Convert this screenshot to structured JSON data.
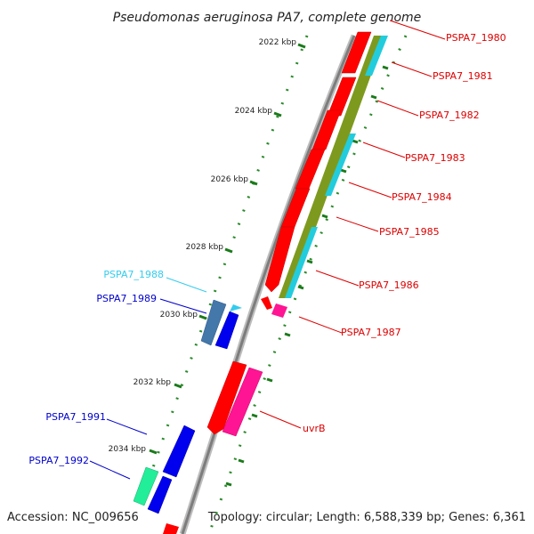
{
  "title": "Pseudomonas aeruginosa PA7, complete genome",
  "footer": {
    "accession": "Accession: NC_009656",
    "topology": "Topology: circular; Length: 6,588,339 bp; Genes: 6,361"
  },
  "ticks": [
    {
      "label": "2022 kbp"
    },
    {
      "label": "2024 kbp"
    },
    {
      "label": "2026 kbp"
    },
    {
      "label": "2028 kbp"
    },
    {
      "label": "2030 kbp"
    },
    {
      "label": "2032 kbp"
    },
    {
      "label": "2034 kbp"
    }
  ],
  "genes": [
    {
      "name": "PSPA7_1980",
      "color": "#ff0000"
    },
    {
      "name": "PSPA7_1981",
      "color": "#ff0000"
    },
    {
      "name": "PSPA7_1982",
      "color": "#ff0000"
    },
    {
      "name": "PSPA7_1983",
      "color": "#ff0000"
    },
    {
      "name": "PSPA7_1984",
      "color": "#ff0000"
    },
    {
      "name": "PSPA7_1985",
      "color": "#ff0000"
    },
    {
      "name": "PSPA7_1986",
      "color": "#ff0000"
    },
    {
      "name": "PSPA7_1987",
      "color": "#ff0000"
    },
    {
      "name": "PSPA7_1988",
      "color": "#33ccee"
    },
    {
      "name": "PSPA7_1989",
      "color": "#0000cc"
    },
    {
      "name": "uvrB",
      "color": "#ff0000"
    },
    {
      "name": "PSPA7_1991",
      "color": "#0000cc"
    },
    {
      "name": "PSPA7_1992",
      "color": "#0000cc"
    }
  ],
  "colors": {
    "backbone": "#8a8a8a",
    "cds_red": "#ff0000",
    "cds_cyan": "#22ccdd",
    "cds_olive": "#7d9a1e",
    "cds_blue": "#0000ee",
    "cds_steel": "#4477aa",
    "cds_magenta": "#ff1493",
    "cds_green": "#22ee99",
    "tick_green": "#1a7a1a"
  }
}
